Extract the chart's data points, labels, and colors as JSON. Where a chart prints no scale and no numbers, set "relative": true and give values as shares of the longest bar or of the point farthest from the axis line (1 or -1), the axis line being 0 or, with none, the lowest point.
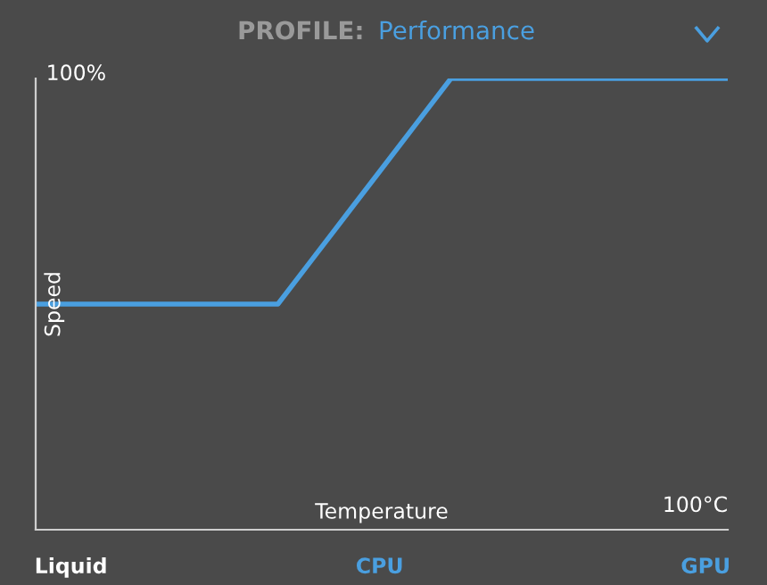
{
  "chart_data": {
    "type": "line",
    "title": "PROFILE:",
    "subtitle": "Performance",
    "xlabel": "Temperature",
    "ylabel": "Speed",
    "relative": true,
    "categories": [
      null,
      null,
      null,
      null,
      null,
      null,
      null,
      null,
      null,
      null,
      null,
      null,
      null,
      null,
      null,
      null,
      null,
      null,
      null,
      null,
      null
    ],
    "series": [
      {
        "color": "#4a9fe0",
        "values": [
          0.5,
          0.5,
          0.5,
          0.5,
          0.5,
          0.5,
          0.5,
          0.5,
          0.6,
          0.7,
          0.8,
          0.9,
          1,
          1,
          1,
          1,
          1,
          1,
          1,
          1,
          1
        ]
      }
    ],
    "annotations": [
      "100%",
      "Liquid",
      "CPU",
      "GPU",
      "100°C"
    ],
    "grid": false,
    "legend": false,
    "marker": "none",
    "line_style": "solid"
  }
}
